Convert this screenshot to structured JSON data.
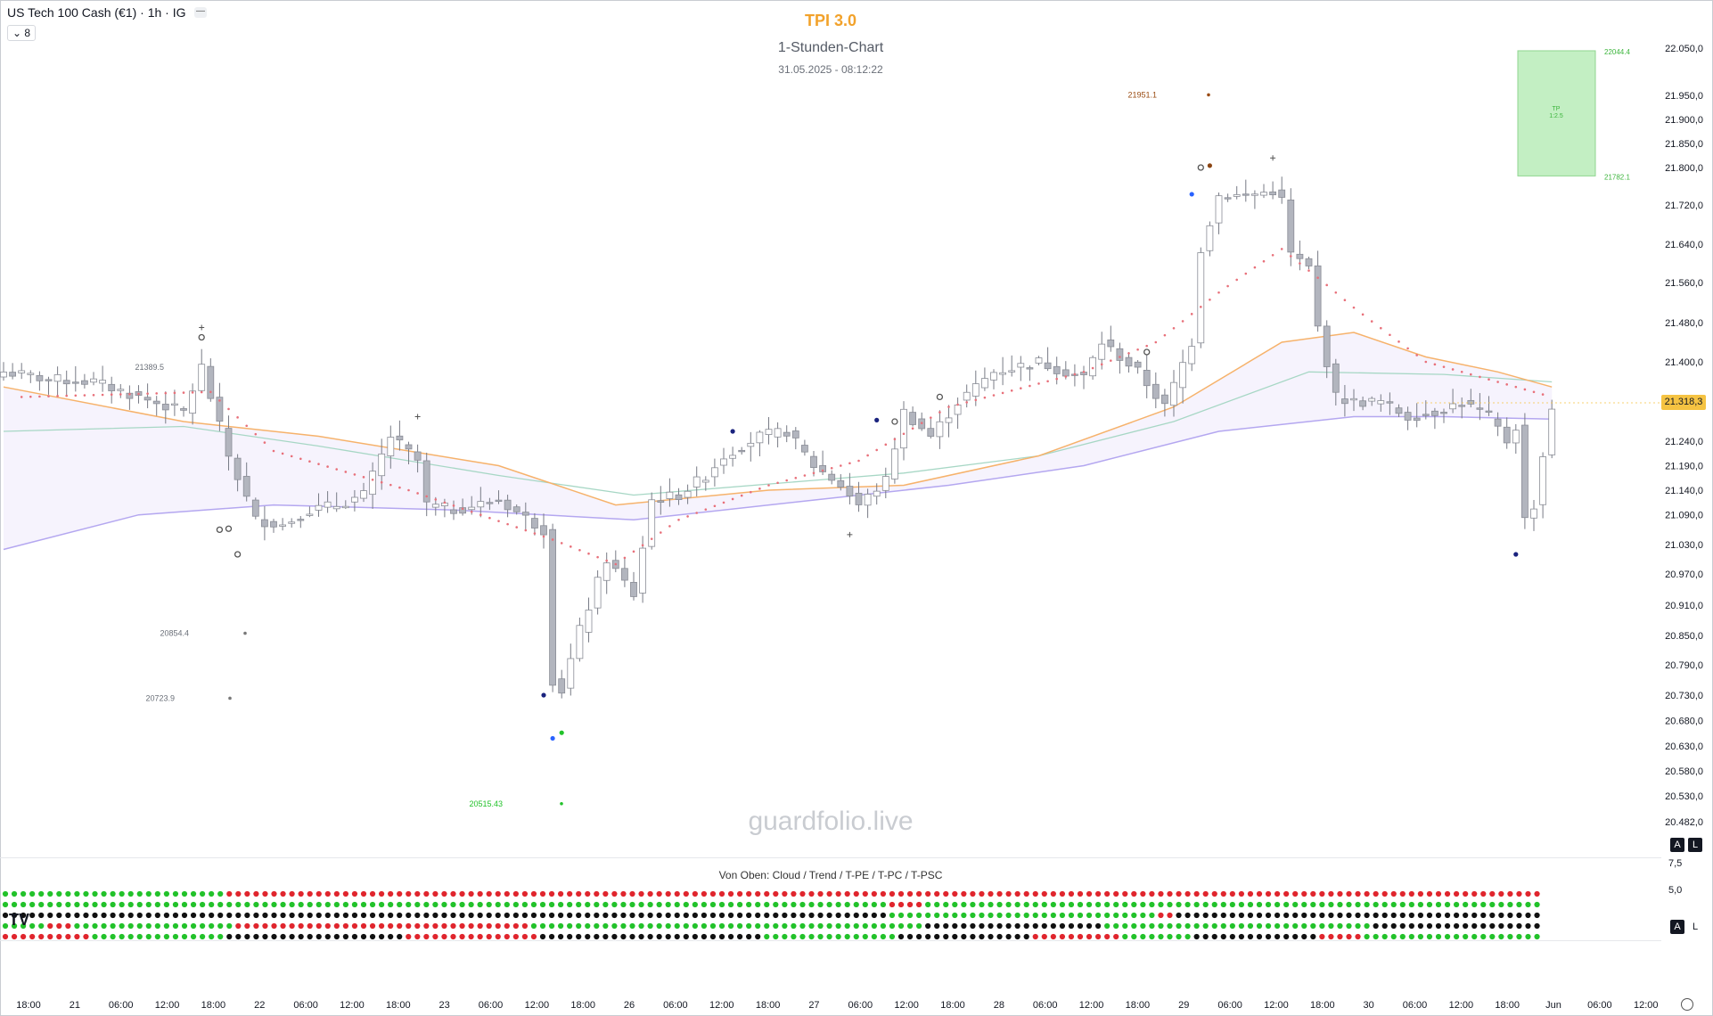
{
  "header": {
    "symbol": "US Tech 100 Cash (€1) · 1h · IG",
    "minimize_label": "—",
    "collapse_label": "⌄ 8",
    "indicator_title": "TPI 3.0",
    "chart_subtitle": "1-Stunden-Chart",
    "timestamp": "31.05.2025 - 08:12:22"
  },
  "watermark": "guardfolio.live",
  "lower_pane_label": "Von Oben: Cloud / Trend / T-PE / T-PC / T-PSC",
  "current_price": "21.318,3",
  "buttons": {
    "auto": "A",
    "log": "L"
  },
  "logo": "TV",
  "colors": {
    "bull": "#ffffff",
    "bear": "#b2b5be",
    "wick": "#787b86",
    "ema_fast": "#f6b26b",
    "ema_mid": "#a7d7c5",
    "ema_slow": "#b4a7f0",
    "trail": "#e8707a",
    "tp_box": "#b9edb9",
    "dot_green": "#22c22a",
    "dot_red": "#e0252d",
    "dot_black": "#111111"
  },
  "chart_data": {
    "type": "candlestick",
    "title": "TPI 3.0",
    "subtitle": "1-Stunden-Chart",
    "y_axis": {
      "ticks": [
        "22.050,0",
        "21.950,0",
        "21.900,0",
        "21.850,0",
        "21.800,0",
        "21.720,0",
        "21.640,0",
        "21.560,0",
        "21.480,0",
        "21.400,0",
        "21.240,0",
        "21.190,0",
        "21.140,0",
        "21.090,0",
        "21.030,0",
        "20.970,0",
        "20.910,0",
        "20.850,0",
        "20.790,0",
        "20.730,0",
        "20.680,0",
        "20.630,0",
        "20.580,0",
        "20.530,0",
        "20.482,0"
      ],
      "lower_ticks": [
        "7,5",
        "5,0"
      ]
    },
    "x_axis": {
      "ticks": [
        "18:00",
        "21",
        "06:00",
        "12:00",
        "18:00",
        "22",
        "06:00",
        "12:00",
        "18:00",
        "23",
        "06:00",
        "12:00",
        "18:00",
        "26",
        "06:00",
        "12:00",
        "18:00",
        "27",
        "06:00",
        "12:00",
        "18:00",
        "28",
        "06:00",
        "12:00",
        "18:00",
        "29",
        "06:00",
        "12:00",
        "18:00",
        "30",
        "06:00",
        "12:00",
        "18:00",
        "Jun",
        "06:00",
        "12:00"
      ]
    },
    "annotations": [
      {
        "text": "21389.5",
        "value": 21389.5
      },
      {
        "text": "20854.4",
        "value": 20854.4
      },
      {
        "text": "20723.9",
        "value": 20723.9
      },
      {
        "text": "20515.43",
        "value": 20515.43
      },
      {
        "text": "21951.1",
        "value": 21951.1
      }
    ],
    "take_profit": {
      "upper_text": "22044.4",
      "lower_text": "21782.1",
      "label_line1": "TP",
      "label_line2": "1:2.5",
      "upper": 22044.4,
      "lower": 21782.1
    },
    "close_path": [
      [
        0,
        21380
      ],
      [
        5,
        21365
      ],
      [
        10,
        21360
      ],
      [
        15,
        21330
      ],
      [
        20,
        21300
      ],
      [
        22,
        21390
      ],
      [
        25,
        21210
      ],
      [
        28,
        21080
      ],
      [
        31,
        21070
      ],
      [
        34,
        21100
      ],
      [
        37,
        21110
      ],
      [
        40,
        21130
      ],
      [
        43,
        21250
      ],
      [
        46,
        21200
      ],
      [
        47,
        21110
      ],
      [
        50,
        21100
      ],
      [
        55,
        21120
      ],
      [
        60,
        21060
      ],
      [
        61,
        20760
      ],
      [
        62,
        20740
      ],
      [
        64,
        20860
      ],
      [
        67,
        21000
      ],
      [
        70,
        20930
      ],
      [
        72,
        21120
      ],
      [
        75,
        21130
      ],
      [
        78,
        21170
      ],
      [
        80,
        21210
      ],
      [
        84,
        21250
      ],
      [
        87,
        21260
      ],
      [
        90,
        21190
      ],
      [
        93,
        21150
      ],
      [
        95,
        21110
      ],
      [
        98,
        21160
      ],
      [
        100,
        21300
      ],
      [
        103,
        21250
      ],
      [
        106,
        21320
      ],
      [
        110,
        21380
      ],
      [
        115,
        21400
      ],
      [
        118,
        21380
      ],
      [
        120,
        21370
      ],
      [
        122,
        21440
      ],
      [
        126,
        21380
      ],
      [
        129,
        21310
      ],
      [
        132,
        21440
      ],
      [
        133,
        21630
      ],
      [
        135,
        21740
      ],
      [
        138,
        21740
      ],
      [
        141,
        21750
      ],
      [
        142,
        21730
      ],
      [
        143,
        21620
      ],
      [
        145,
        21590
      ],
      [
        146,
        21470
      ],
      [
        148,
        21330
      ],
      [
        150,
        21320
      ],
      [
        153,
        21320
      ],
      [
        156,
        21290
      ],
      [
        159,
        21300
      ],
      [
        162,
        21320
      ],
      [
        165,
        21290
      ],
      [
        167,
        21240
      ],
      [
        168,
        21270
      ],
      [
        169,
        21080
      ],
      [
        170,
        21110
      ],
      [
        172,
        21310
      ]
    ],
    "ema_fast": [
      [
        0,
        21350
      ],
      [
        20,
        21280
      ],
      [
        35,
        21250
      ],
      [
        55,
        21190
      ],
      [
        68,
        21110
      ],
      [
        85,
        21140
      ],
      [
        100,
        21150
      ],
      [
        115,
        21210
      ],
      [
        130,
        21310
      ],
      [
        142,
        21440
      ],
      [
        150,
        21460
      ],
      [
        158,
        21410
      ],
      [
        166,
        21380
      ],
      [
        172,
        21350
      ]
    ],
    "ema_mid": [
      [
        0,
        21260
      ],
      [
        20,
        21270
      ],
      [
        35,
        21230
      ],
      [
        55,
        21170
      ],
      [
        70,
        21130
      ],
      [
        90,
        21160
      ],
      [
        100,
        21175
      ],
      [
        115,
        21210
      ],
      [
        130,
        21280
      ],
      [
        145,
        21380
      ],
      [
        160,
        21375
      ],
      [
        172,
        21360
      ]
    ],
    "ema_slow": [
      [
        0,
        21020
      ],
      [
        15,
        21090
      ],
      [
        30,
        21110
      ],
      [
        50,
        21100
      ],
      [
        70,
        21080
      ],
      [
        90,
        21120
      ],
      [
        105,
        21150
      ],
      [
        120,
        21190
      ],
      [
        135,
        21260
      ],
      [
        150,
        21290
      ],
      [
        160,
        21290
      ],
      [
        172,
        21285
      ]
    ],
    "trail_stop": [
      [
        2,
        21330
      ],
      [
        23,
        21340
      ],
      [
        30,
        21220
      ],
      [
        45,
        21140
      ],
      [
        61,
        21040
      ],
      [
        68,
        20990
      ],
      [
        75,
        21080
      ],
      [
        85,
        21150
      ],
      [
        95,
        21200
      ],
      [
        105,
        21310
      ],
      [
        120,
        21380
      ],
      [
        128,
        21440
      ],
      [
        135,
        21540
      ],
      [
        142,
        21630
      ],
      [
        150,
        21510
      ],
      [
        158,
        21400
      ],
      [
        166,
        21360
      ],
      [
        172,
        21330
      ]
    ],
    "signals": [
      {
        "i": 22,
        "value": 21470,
        "kind": "cross"
      },
      {
        "i": 46,
        "value": 21290,
        "kind": "cross"
      },
      {
        "i": 94,
        "value": 21050,
        "kind": "cross"
      },
      {
        "i": 141,
        "value": 21820,
        "kind": "cross"
      },
      {
        "i": 22,
        "value": 21450,
        "kind": "ring"
      },
      {
        "i": 24,
        "value": 21060,
        "kind": "ring"
      },
      {
        "i": 25,
        "value": 21062,
        "kind": "ring"
      },
      {
        "i": 26,
        "value": 21010,
        "kind": "ring"
      },
      {
        "i": 99,
        "value": 21280,
        "kind": "ring"
      },
      {
        "i": 104,
        "value": 21330,
        "kind": "ring"
      },
      {
        "i": 127,
        "value": 21420,
        "kind": "ring"
      },
      {
        "i": 133,
        "value": 21800,
        "kind": "ring"
      },
      {
        "i": 81,
        "value": 21260,
        "kind": "navy"
      },
      {
        "i": 97,
        "value": 21283,
        "kind": "navy"
      },
      {
        "i": 60,
        "value": 20730,
        "kind": "navy"
      },
      {
        "i": 168,
        "value": 21010,
        "kind": "navy"
      },
      {
        "i": 61,
        "value": 20645,
        "kind": "blue"
      },
      {
        "i": 132,
        "value": 21743,
        "kind": "blue"
      },
      {
        "i": 62,
        "value": 20656,
        "kind": "green"
      },
      {
        "i": 134,
        "value": 21804,
        "kind": "brown"
      }
    ],
    "lower_pane": {
      "rows": [
        "Cloud",
        "Trend",
        "T-PE",
        "T-PC",
        "T-PSC"
      ],
      "segments": [
        [
          [
            "G",
            25
          ],
          [
            "R",
            147
          ]
        ],
        [
          [
            "G",
            99
          ],
          [
            "R",
            4
          ],
          [
            "G",
            69
          ]
        ],
        [
          [
            "B",
            99
          ],
          [
            "G",
            30
          ],
          [
            "R",
            2
          ],
          [
            "B",
            41
          ]
        ],
        [
          [
            "G",
            5
          ],
          [
            "R",
            3
          ],
          [
            "G",
            18
          ],
          [
            "R",
            33
          ],
          [
            "G",
            44
          ],
          [
            "B",
            20
          ],
          [
            "G",
            30
          ],
          [
            "B",
            19
          ]
        ],
        [
          [
            "R",
            10
          ],
          [
            "G",
            15
          ],
          [
            "B",
            20
          ],
          [
            "R",
            15
          ],
          [
            "B",
            25
          ],
          [
            "G",
            15
          ],
          [
            "B",
            15
          ],
          [
            "R",
            10
          ],
          [
            "G",
            8
          ],
          [
            "B",
            14
          ],
          [
            "R",
            5
          ],
          [
            "G",
            20
          ]
        ]
      ]
    }
  }
}
